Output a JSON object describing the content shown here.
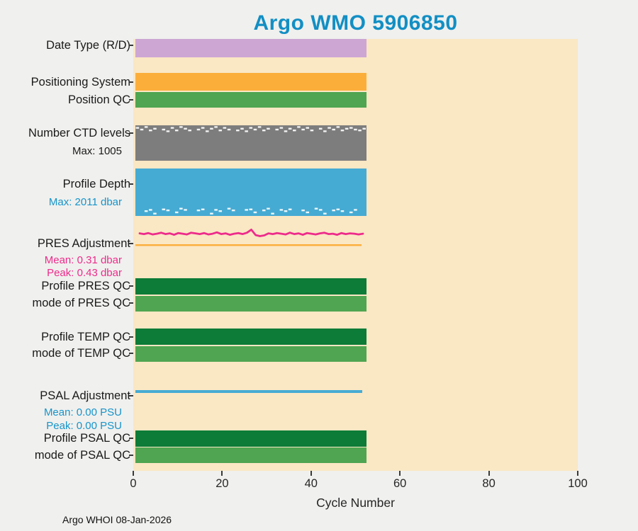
{
  "page": {
    "background": "#f0f0ee",
    "footer": "Argo WHOI 08-Jan-2026"
  },
  "chart_data": {
    "type": "bar",
    "title": "Argo WMO 5906850",
    "title_color": "#128fc4",
    "plot_bg": "#fae7c4",
    "xlabel": "Cycle Number",
    "xlim": [
      0,
      100
    ],
    "x_ticks": [
      0,
      20,
      40,
      60,
      80,
      100
    ],
    "n_cycles": 53,
    "rows": [
      {
        "id": "date_type",
        "label": "Date Type (R/D)",
        "type": "bar",
        "color": "#cda6d4"
      },
      {
        "id": "positioning_system",
        "label": "Positioning System",
        "type": "bar",
        "color": "#fcae3b"
      },
      {
        "id": "position_qc",
        "label": "Position QC",
        "type": "bar",
        "color": "#4fa551"
      },
      {
        "id": "ctd_levels",
        "label": "Number CTD levels",
        "type": "bar-topmarks",
        "color": "#7d7d7d",
        "max": 1005,
        "sublabels": [
          {
            "text": "Max: 1005",
            "color": "#1a1a1a"
          }
        ],
        "values": [
          1003,
          1001,
          1004,
          1000,
          1002,
          1005,
          1001,
          999,
          1003,
          1000,
          1004,
          1002,
          1000,
          1005,
          1001,
          1003,
          999,
          1002,
          1004,
          1000,
          1003,
          1001,
          1005,
          1000,
          1002,
          999,
          1003,
          1001,
          1004,
          1000,
          1002,
          1005,
          1001,
          1003,
          999,
          1002,
          1000,
          1004,
          1001,
          1003,
          1000,
          1005,
          1002,
          999,
          1003,
          1001,
          1004,
          1000,
          1002,
          1003,
          1001,
          1000,
          1002
        ]
      },
      {
        "id": "profile_depth",
        "label": "Profile Depth",
        "type": "bar-bottommarks",
        "color": "#46abd3",
        "max": 2011,
        "sublabels": [
          {
            "text": "Max: 2011 dbar",
            "color": "#1694ca"
          }
        ],
        "values": [
          2011,
          2008,
          1995,
          1990,
          2005,
          2011,
          1988,
          1992,
          2011,
          2000,
          1985,
          1990,
          2011,
          2008,
          1992,
          1988,
          2011,
          2005,
          1990,
          1995,
          2011,
          1985,
          1992,
          2008,
          2011,
          1990,
          1988,
          2000,
          2011,
          1992,
          1985,
          2005,
          2011,
          1990,
          1995,
          1988,
          2011,
          2008,
          1992,
          2000,
          2011,
          1985,
          1990,
          2005,
          2011,
          1992,
          1988,
          1995,
          2011,
          2000,
          1990,
          2008,
          2011
        ]
      },
      {
        "id": "pres_adjustment",
        "label": "PRES Adjustment",
        "type": "line",
        "color": "#ed2b8b",
        "ref_color": "#fcae3b",
        "mean": 0.31,
        "peak": 0.43,
        "unit": "dbar",
        "sublabels": [
          {
            "text": "Mean: 0.31 dbar",
            "color": "#ed2b8b"
          },
          {
            "text": "Peak: 0.43 dbar",
            "color": "#ed2b8b"
          }
        ],
        "values": [
          0.32,
          0.3,
          0.33,
          0.29,
          0.31,
          0.34,
          0.3,
          0.32,
          0.28,
          0.33,
          0.31,
          0.29,
          0.34,
          0.32,
          0.3,
          0.33,
          0.29,
          0.31,
          0.35,
          0.3,
          0.32,
          0.28,
          0.31,
          0.33,
          0.3,
          0.34,
          0.43,
          0.27,
          0.24,
          0.26,
          0.32,
          0.3,
          0.33,
          0.31,
          0.29,
          0.34,
          0.3,
          0.32,
          0.28,
          0.33,
          0.31,
          0.29,
          0.32,
          0.34,
          0.3,
          0.31,
          0.28,
          0.33,
          0.3,
          0.32,
          0.31,
          0.29,
          0.31
        ]
      },
      {
        "id": "profile_pres_qc",
        "label": "Profile PRES QC",
        "type": "bar",
        "color": "#0c7c38"
      },
      {
        "id": "mode_pres_qc",
        "label": "mode of PRES QC",
        "type": "bar",
        "color": "#4fa551"
      },
      {
        "id": "profile_temp_qc",
        "label": "Profile TEMP QC",
        "type": "bar",
        "color": "#0c7c38"
      },
      {
        "id": "mode_temp_qc",
        "label": "mode of TEMP QC",
        "type": "bar",
        "color": "#4fa551"
      },
      {
        "id": "psal_adjustment",
        "label": "PSAL Adjustment",
        "type": "flatline",
        "color": "#46abd3",
        "mean": 0.0,
        "peak": 0.0,
        "unit": "PSU",
        "sublabels": [
          {
            "text": "Mean: 0.00 PSU",
            "color": "#1694ca"
          },
          {
            "text": "Peak: 0.00 PSU",
            "color": "#1694ca"
          }
        ]
      },
      {
        "id": "profile_psal_qc",
        "label": "Profile PSAL QC",
        "type": "bar",
        "color": "#0c7c38"
      },
      {
        "id": "mode_psal_qc",
        "label": "mode of PSAL QC",
        "type": "bar",
        "color": "#4fa551"
      }
    ]
  }
}
